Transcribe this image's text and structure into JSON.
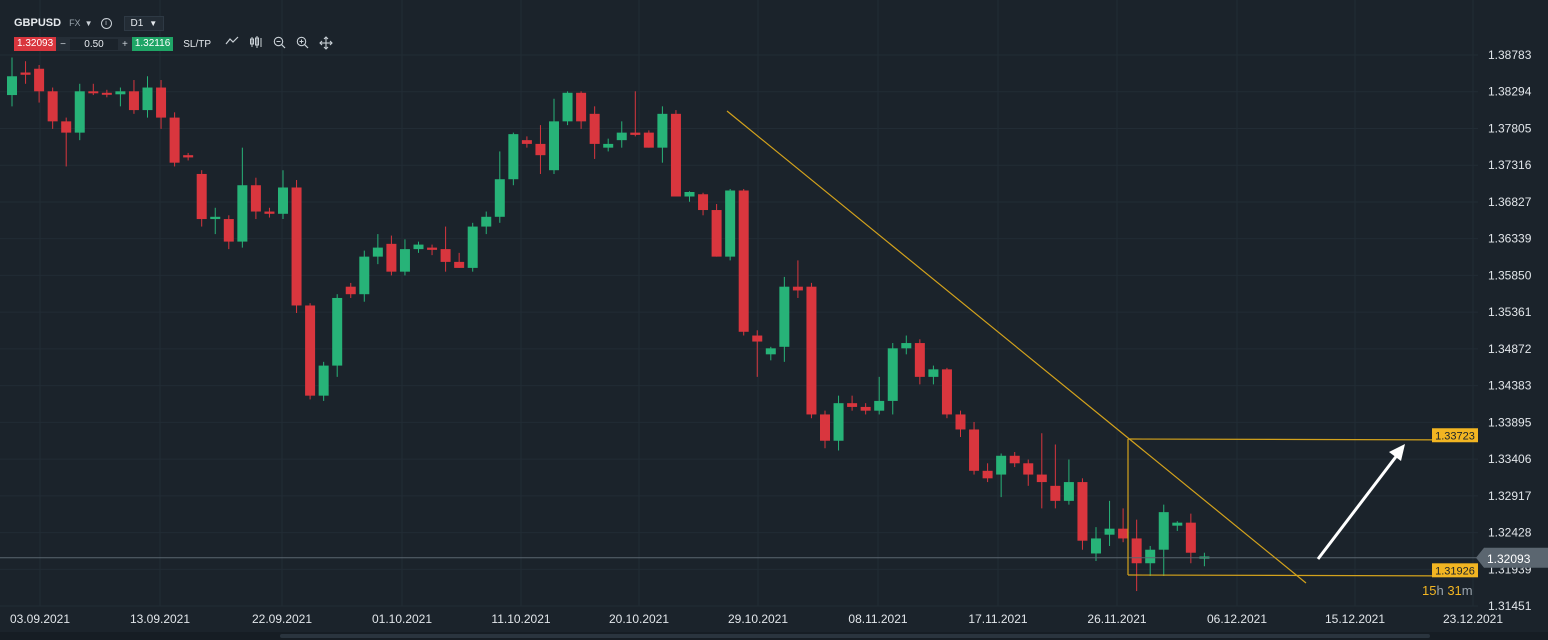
{
  "header": {
    "symbol": "GBPUSD",
    "exchange": "FX",
    "timeframe": "D1",
    "sell_price": "1.32093",
    "quantity": "0.50",
    "buy_price": "1.32116",
    "sltp_label": "SL/TP",
    "minus": "−",
    "plus": "+"
  },
  "colors": {
    "background": "#1b232b",
    "bull": "#27b378",
    "bear": "#d9363e",
    "trendline": "#d3a21c",
    "label_bg": "#f2b522"
  },
  "icons": [
    "line-chart-icon",
    "indicators-icon",
    "zoom-out-icon",
    "zoom-in-icon",
    "crosshair-icon"
  ],
  "countdown": {
    "hours": "15",
    "h": "h",
    "minutes": "31",
    "m": "m"
  },
  "chart_data": {
    "type": "candlestick",
    "y_ticks": [
      "1.38783",
      "1.38294",
      "1.37805",
      "1.37316",
      "1.36827",
      "1.36339",
      "1.35850",
      "1.35361",
      "1.34872",
      "1.34383",
      "1.33895",
      "1.33406",
      "1.32917",
      "1.32428",
      "1.31939",
      "1.31451"
    ],
    "x_ticks": [
      "03.09.2021",
      "13.09.2021",
      "22.09.2021",
      "01.10.2021",
      "11.10.2021",
      "20.10.2021",
      "29.10.2021",
      "08.11.2021",
      "17.11.2021",
      "26.11.2021",
      "06.12.2021",
      "15.12.2021",
      "23.12.2021"
    ],
    "ylim": [
      1.3145,
      1.388
    ],
    "current_price": "1.32093",
    "price_labels": [
      {
        "value": "1.33723",
        "price": 1.33723
      },
      {
        "value": "1.31926",
        "price": 1.31926
      }
    ],
    "candles": [
      [
        1.3825,
        1.3875,
        1.381,
        1.385
      ],
      [
        1.3855,
        1.387,
        1.384,
        1.3852
      ],
      [
        1.386,
        1.3865,
        1.3815,
        1.383
      ],
      [
        1.383,
        1.3835,
        1.378,
        1.379
      ],
      [
        1.379,
        1.3795,
        1.373,
        1.3775
      ],
      [
        1.3775,
        1.384,
        1.3765,
        1.383
      ],
      [
        1.383,
        1.384,
        1.3825,
        1.3828
      ],
      [
        1.3828,
        1.3832,
        1.3822,
        1.3826
      ],
      [
        1.3826,
        1.3835,
        1.381,
        1.383
      ],
      [
        1.383,
        1.3845,
        1.38,
        1.3805
      ],
      [
        1.3805,
        1.385,
        1.3795,
        1.3835
      ],
      [
        1.3835,
        1.3845,
        1.378,
        1.3795
      ],
      [
        1.3795,
        1.3802,
        1.373,
        1.3735
      ],
      [
        1.3745,
        1.3748,
        1.3738,
        1.3742
      ],
      [
        1.372,
        1.3725,
        1.365,
        1.366
      ],
      [
        1.366,
        1.3675,
        1.364,
        1.3663
      ],
      [
        1.366,
        1.3665,
        1.362,
        1.363
      ],
      [
        1.363,
        1.3755,
        1.3622,
        1.3705
      ],
      [
        1.3705,
        1.3715,
        1.366,
        1.367
      ],
      [
        1.367,
        1.3675,
        1.3662,
        1.3667
      ],
      [
        1.3667,
        1.3725,
        1.366,
        1.3702
      ],
      [
        1.3702,
        1.3712,
        1.3535,
        1.3545
      ],
      [
        1.3545,
        1.3548,
        1.342,
        1.3425
      ],
      [
        1.3425,
        1.347,
        1.3418,
        1.3465
      ],
      [
        1.3465,
        1.356,
        1.345,
        1.3555
      ],
      [
        1.357,
        1.3575,
        1.3555,
        1.356
      ],
      [
        1.356,
        1.3618,
        1.355,
        1.361
      ],
      [
        1.361,
        1.364,
        1.36,
        1.3622
      ],
      [
        1.3627,
        1.3638,
        1.3585,
        1.359
      ],
      [
        1.359,
        1.3633,
        1.3585,
        1.362
      ],
      [
        1.362,
        1.363,
        1.3615,
        1.3626
      ],
      [
        1.3622,
        1.3626,
        1.3612,
        1.3619
      ],
      [
        1.362,
        1.365,
        1.359,
        1.3603
      ],
      [
        1.3603,
        1.3615,
        1.3595,
        1.3595
      ],
      [
        1.3595,
        1.3655,
        1.359,
        1.365
      ],
      [
        1.365,
        1.367,
        1.364,
        1.3663
      ],
      [
        1.3663,
        1.375,
        1.3655,
        1.3713
      ],
      [
        1.3713,
        1.3775,
        1.3705,
        1.3773
      ],
      [
        1.3765,
        1.377,
        1.3755,
        1.376
      ],
      [
        1.376,
        1.3785,
        1.372,
        1.3745
      ],
      [
        1.3725,
        1.382,
        1.372,
        1.379
      ],
      [
        1.379,
        1.383,
        1.3785,
        1.3828
      ],
      [
        1.3828,
        1.383,
        1.378,
        1.379
      ],
      [
        1.38,
        1.381,
        1.374,
        1.376
      ],
      [
        1.3755,
        1.3767,
        1.375,
        1.376
      ],
      [
        1.3765,
        1.379,
        1.3755,
        1.3775
      ],
      [
        1.3775,
        1.383,
        1.377,
        1.3772
      ],
      [
        1.3775,
        1.3778,
        1.3755,
        1.3755
      ],
      [
        1.3755,
        1.381,
        1.3735,
        1.38
      ],
      [
        1.38,
        1.3805,
        1.3695,
        1.369
      ],
      [
        1.369,
        1.3697,
        1.3683,
        1.3696
      ],
      [
        1.3693,
        1.3695,
        1.3665,
        1.3672
      ],
      [
        1.3672,
        1.368,
        1.361,
        1.361
      ],
      [
        1.361,
        1.37,
        1.3605,
        1.3698
      ],
      [
        1.3698,
        1.37,
        1.3505,
        1.351
      ],
      [
        1.3505,
        1.3512,
        1.345,
        1.3497
      ],
      [
        1.348,
        1.349,
        1.3472,
        1.3488
      ],
      [
        1.349,
        1.3583,
        1.347,
        1.357
      ],
      [
        1.357,
        1.3605,
        1.3555,
        1.3565
      ],
      [
        1.357,
        1.3575,
        1.3395,
        1.34
      ],
      [
        1.34,
        1.3405,
        1.3355,
        1.3365
      ],
      [
        1.3365,
        1.3425,
        1.3352,
        1.3415
      ],
      [
        1.3415,
        1.3425,
        1.3405,
        1.341
      ],
      [
        1.341,
        1.3415,
        1.34,
        1.3405
      ],
      [
        1.3405,
        1.345,
        1.34,
        1.3418
      ],
      [
        1.3418,
        1.3495,
        1.34,
        1.3488
      ],
      [
        1.3488,
        1.3505,
        1.348,
        1.3495
      ],
      [
        1.3495,
        1.35,
        1.344,
        1.345
      ],
      [
        1.345,
        1.3465,
        1.344,
        1.346
      ],
      [
        1.346,
        1.3462,
        1.3395,
        1.34
      ],
      [
        1.34,
        1.3405,
        1.337,
        1.338
      ],
      [
        1.338,
        1.339,
        1.332,
        1.3325
      ],
      [
        1.3325,
        1.3335,
        1.331,
        1.3315
      ],
      [
        1.332,
        1.3348,
        1.329,
        1.3345
      ],
      [
        1.3345,
        1.335,
        1.333,
        1.3335
      ],
      [
        1.3335,
        1.334,
        1.3305,
        1.332
      ],
      [
        1.332,
        1.3375,
        1.3275,
        1.331
      ],
      [
        1.3305,
        1.336,
        1.3275,
        1.3285
      ],
      [
        1.3285,
        1.334,
        1.328,
        1.331
      ],
      [
        1.331,
        1.3315,
        1.322,
        1.3232
      ],
      [
        1.3215,
        1.325,
        1.3205,
        1.3235
      ],
      [
        1.324,
        1.3285,
        1.3225,
        1.3248
      ],
      [
        1.3248,
        1.3275,
        1.323,
        1.3235
      ],
      [
        1.3235,
        1.326,
        1.3165,
        1.3202
      ],
      [
        1.3202,
        1.3225,
        1.3185,
        1.322
      ],
      [
        1.322,
        1.328,
        1.3185,
        1.327
      ],
      [
        1.3252,
        1.3258,
        1.3245,
        1.3256
      ],
      [
        1.3256,
        1.3268,
        1.3202,
        1.3216
      ],
      [
        1.3208,
        1.3216,
        1.3198,
        1.3211
      ]
    ]
  }
}
